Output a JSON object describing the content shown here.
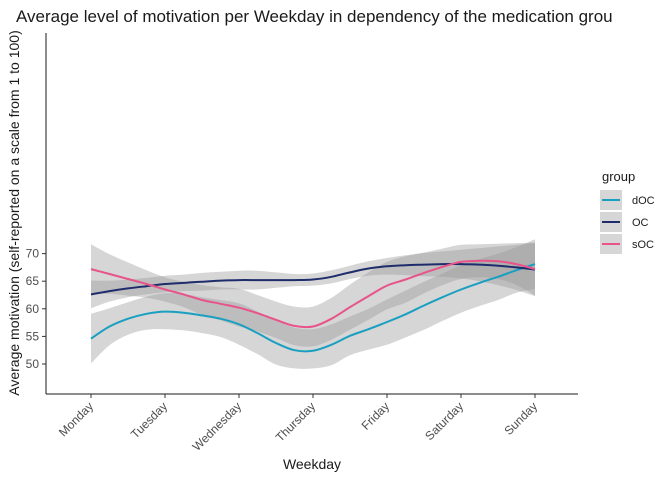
{
  "chart_data": {
    "type": "line",
    "title": "Average level of motivation per Weekday in dependency of the medication grou",
    "xlabel": "Weekday",
    "ylabel": "Average motivation (self-reported on a scale from 1 to 100)",
    "categories": [
      "Monday",
      "Tuesday",
      "Wednesday",
      "Thursday",
      "Friday",
      "Saturday",
      "Sunday"
    ],
    "ylim": [
      48,
      73
    ],
    "yticks": [
      50,
      55,
      60,
      65,
      70
    ],
    "grid": false,
    "smoothed_with_confidence_band": true,
    "legend": {
      "title": "group",
      "position": "right"
    },
    "series": [
      {
        "name": "dOC",
        "color": "#1a9fc1",
        "x": [
          1,
          1.25,
          1.5,
          1.75,
          2,
          2.25,
          2.5,
          2.75,
          3,
          3.25,
          3.5,
          3.75,
          4,
          4.25,
          4.5,
          4.75,
          5,
          5.25,
          5.5,
          5.75,
          6,
          6.25,
          6.5,
          6.75,
          7
        ],
        "values": [
          54.6,
          56.8,
          58.2,
          59.1,
          59.5,
          59.3,
          58.8,
          58.2,
          57.2,
          55.6,
          53.8,
          52.5,
          52.4,
          53.5,
          55.1,
          56.3,
          57.6,
          59.0,
          60.6,
          62.1,
          63.5,
          64.7,
          65.8,
          67.0,
          68.1
        ],
        "band_upper": [
          59.1,
          60.1,
          61.2,
          62.2,
          62.8,
          62.7,
          62.1,
          61.6,
          61.0,
          59.5,
          57.9,
          56.6,
          56.3,
          57.2,
          58.6,
          60.0,
          61.7,
          63.3,
          64.9,
          66.4,
          67.9,
          69.0,
          70.0,
          71.2,
          72.6
        ],
        "band_lower": [
          50.1,
          53.4,
          55.3,
          56.2,
          56.3,
          56.1,
          55.6,
          54.9,
          53.5,
          51.8,
          49.9,
          49.2,
          49.2,
          49.8,
          51.6,
          52.6,
          53.5,
          54.8,
          56.2,
          57.8,
          59.3,
          60.5,
          61.6,
          62.9,
          63.6
        ]
      },
      {
        "name": "OC",
        "color": "#1f2c6b",
        "x": [
          1,
          1.25,
          1.5,
          1.75,
          2,
          2.25,
          2.5,
          2.75,
          3,
          3.25,
          3.5,
          3.75,
          4,
          4.25,
          4.5,
          4.75,
          5,
          5.25,
          5.5,
          5.75,
          6,
          6.25,
          6.5,
          6.75,
          7
        ],
        "values": [
          62.6,
          63.2,
          63.7,
          64.1,
          64.5,
          64.7,
          64.9,
          65.1,
          65.2,
          65.2,
          65.2,
          65.2,
          65.3,
          65.8,
          66.6,
          67.3,
          67.7,
          67.9,
          68.0,
          68.1,
          68.1,
          68.0,
          67.8,
          67.5,
          67.1
        ],
        "band_upper": [
          65.1,
          65.1,
          65.3,
          65.6,
          66.0,
          66.2,
          66.5,
          66.7,
          66.9,
          66.9,
          66.6,
          66.3,
          66.4,
          67.0,
          67.8,
          68.6,
          69.2,
          69.7,
          70.1,
          70.4,
          70.7,
          71.0,
          71.3,
          71.6,
          71.9
        ],
        "band_lower": [
          60.1,
          61.3,
          62.1,
          62.6,
          63.0,
          63.2,
          63.3,
          63.5,
          63.5,
          63.5,
          63.8,
          64.1,
          64.2,
          64.6,
          65.4,
          66.0,
          66.2,
          66.1,
          65.9,
          65.8,
          65.5,
          65.0,
          64.3,
          63.4,
          62.3
        ]
      },
      {
        "name": "sOC",
        "color": "#e8538a",
        "x": [
          1,
          1.25,
          1.5,
          1.75,
          2,
          2.25,
          2.5,
          2.75,
          3,
          3.25,
          3.5,
          3.75,
          4,
          4.25,
          4.5,
          4.75,
          5,
          5.25,
          5.5,
          5.75,
          6,
          6.25,
          6.5,
          6.75,
          7
        ],
        "values": [
          67.2,
          66.3,
          65.4,
          64.5,
          63.5,
          62.6,
          61.6,
          60.9,
          60.2,
          59.2,
          58.0,
          56.9,
          56.8,
          58.2,
          60.3,
          62.3,
          64.2,
          65.3,
          66.5,
          67.6,
          68.5,
          68.7,
          68.6,
          68.1,
          67.2
        ],
        "band_upper": [
          71.7,
          69.9,
          68.4,
          67.0,
          65.7,
          64.9,
          64.3,
          63.9,
          63.6,
          62.5,
          61.3,
          60.4,
          60.4,
          62.0,
          64.4,
          66.6,
          68.5,
          69.5,
          70.2,
          70.9,
          71.6,
          71.7,
          71.8,
          71.9,
          72.0
        ],
        "band_lower": [
          62.7,
          62.7,
          62.4,
          62.0,
          61.3,
          60.3,
          58.9,
          57.9,
          56.8,
          55.9,
          54.7,
          53.4,
          53.2,
          54.4,
          56.2,
          58.0,
          59.9,
          61.1,
          62.8,
          64.3,
          65.4,
          65.7,
          65.4,
          64.3,
          62.4
        ]
      }
    ]
  }
}
